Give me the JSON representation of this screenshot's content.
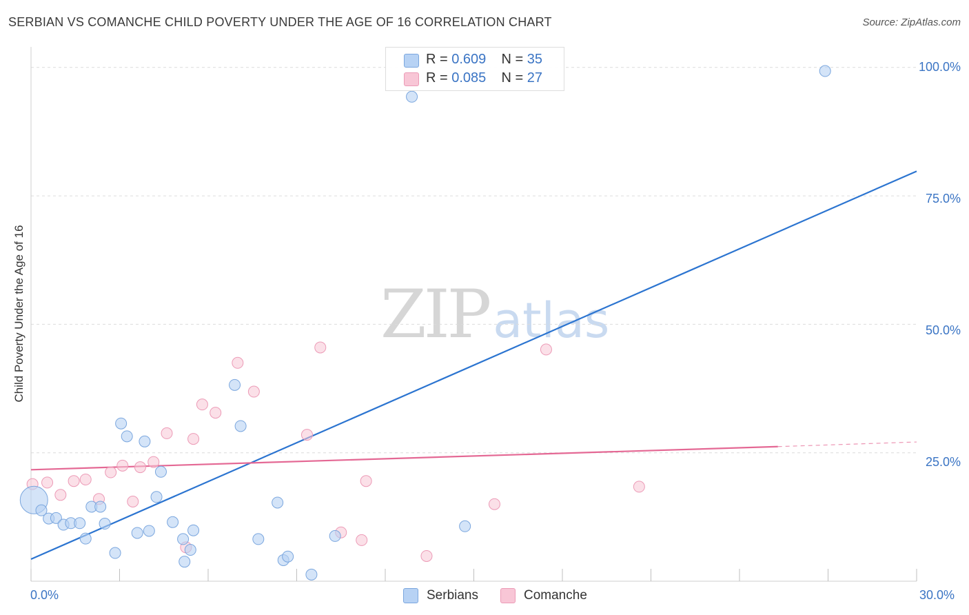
{
  "header": {
    "title": "SERBIAN VS COMANCHE CHILD POVERTY UNDER THE AGE OF 16 CORRELATION CHART",
    "source": "Source: ZipAtlas.com"
  },
  "watermark": {
    "zip": "ZIP",
    "atlas": "atlas"
  },
  "colors": {
    "serbians_fill": "#b7d2f4",
    "serbians_stroke": "#7aa6de",
    "serbians_line": "#2b74d0",
    "comanche_fill": "#f8c6d6",
    "comanche_stroke": "#ec9ab6",
    "comanche_line": "#e46894",
    "grid": "#dcdcdc",
    "tick_text": "#3a74c4"
  },
  "legend": {
    "rows": [
      {
        "r_label": "R =",
        "r_value": "0.609",
        "n_label": "N =",
        "n_value": "35"
      },
      {
        "r_label": "R =",
        "r_value": "0.085",
        "n_label": "N =",
        "n_value": "27"
      }
    ]
  },
  "chart_data": {
    "type": "scatter",
    "title": "SERBIAN VS COMANCHE CHILD POVERTY UNDER THE AGE OF 16 CORRELATION CHART",
    "xlabel": "",
    "ylabel": "Child Poverty Under the Age of 16",
    "xlim": [
      0,
      30
    ],
    "ylim": [
      0,
      104
    ],
    "x_tick_labels": [
      "0.0%",
      "30.0%"
    ],
    "y_ticks": [
      25,
      50,
      75,
      100
    ],
    "y_tick_labels": [
      "25.0%",
      "50.0%",
      "75.0%",
      "100.0%"
    ],
    "grid": true,
    "legend_position": "top-center",
    "series": [
      {
        "name": "Serbians",
        "r": 0.609,
        "n": 35,
        "trend": {
          "x": [
            0,
            30
          ],
          "y": [
            4.3,
            79.8
          ]
        },
        "points": [
          {
            "x": 0.1,
            "y": 15.8,
            "big": true
          },
          {
            "x": 0.35,
            "y": 13.8
          },
          {
            "x": 0.6,
            "y": 12.2
          },
          {
            "x": 0.85,
            "y": 12.3
          },
          {
            "x": 1.1,
            "y": 11.0
          },
          {
            "x": 1.35,
            "y": 11.3
          },
          {
            "x": 1.65,
            "y": 11.3
          },
          {
            "x": 1.85,
            "y": 8.3
          },
          {
            "x": 2.05,
            "y": 14.5
          },
          {
            "x": 2.35,
            "y": 14.5
          },
          {
            "x": 2.5,
            "y": 11.2
          },
          {
            "x": 2.85,
            "y": 5.5
          },
          {
            "x": 3.05,
            "y": 30.7
          },
          {
            "x": 3.25,
            "y": 28.2
          },
          {
            "x": 3.6,
            "y": 9.4
          },
          {
            "x": 3.85,
            "y": 27.2
          },
          {
            "x": 4.0,
            "y": 9.8
          },
          {
            "x": 4.25,
            "y": 16.4
          },
          {
            "x": 4.4,
            "y": 21.3
          },
          {
            "x": 4.8,
            "y": 11.5
          },
          {
            "x": 5.15,
            "y": 8.2
          },
          {
            "x": 5.5,
            "y": 9.9
          },
          {
            "x": 5.2,
            "y": 3.8
          },
          {
            "x": 5.4,
            "y": 6.1
          },
          {
            "x": 6.9,
            "y": 38.2
          },
          {
            "x": 7.1,
            "y": 30.2
          },
          {
            "x": 7.7,
            "y": 8.2
          },
          {
            "x": 8.35,
            "y": 15.3
          },
          {
            "x": 8.55,
            "y": 4.1
          },
          {
            "x": 8.7,
            "y": 4.8
          },
          {
            "x": 9.5,
            "y": 1.3
          },
          {
            "x": 10.3,
            "y": 8.8
          },
          {
            "x": 14.7,
            "y": 10.7
          },
          {
            "x": 12.9,
            "y": 94.3
          },
          {
            "x": 26.9,
            "y": 99.3
          }
        ]
      },
      {
        "name": "Comanche",
        "r": 0.085,
        "n": 27,
        "trend": {
          "x": [
            0,
            25.3
          ],
          "y": [
            21.7,
            26.2
          ]
        },
        "trend_dashed": {
          "x": [
            25.3,
            30
          ],
          "y": [
            26.2,
            27.1
          ]
        },
        "points": [
          {
            "x": 0.05,
            "y": 18.9
          },
          {
            "x": 0.55,
            "y": 19.2
          },
          {
            "x": 1.0,
            "y": 16.8
          },
          {
            "x": 1.45,
            "y": 19.5
          },
          {
            "x": 1.85,
            "y": 19.8
          },
          {
            "x": 2.3,
            "y": 16.0
          },
          {
            "x": 2.7,
            "y": 21.2
          },
          {
            "x": 3.1,
            "y": 22.5
          },
          {
            "x": 3.45,
            "y": 15.5
          },
          {
            "x": 3.7,
            "y": 22.2
          },
          {
            "x": 4.15,
            "y": 23.2
          },
          {
            "x": 4.6,
            "y": 28.8
          },
          {
            "x": 5.25,
            "y": 6.6
          },
          {
            "x": 5.5,
            "y": 27.7
          },
          {
            "x": 5.8,
            "y": 34.4
          },
          {
            "x": 6.25,
            "y": 32.8
          },
          {
            "x": 7.0,
            "y": 42.5
          },
          {
            "x": 7.55,
            "y": 36.9
          },
          {
            "x": 9.35,
            "y": 28.5
          },
          {
            "x": 9.8,
            "y": 45.5
          },
          {
            "x": 10.5,
            "y": 9.5
          },
          {
            "x": 11.2,
            "y": 8.0
          },
          {
            "x": 11.35,
            "y": 19.5
          },
          {
            "x": 13.4,
            "y": 4.9
          },
          {
            "x": 15.7,
            "y": 15.0
          },
          {
            "x": 17.45,
            "y": 45.1
          },
          {
            "x": 20.6,
            "y": 18.4
          }
        ]
      }
    ]
  },
  "bottom_legend": {
    "items": [
      {
        "label": "Serbians"
      },
      {
        "label": "Comanche"
      }
    ]
  }
}
